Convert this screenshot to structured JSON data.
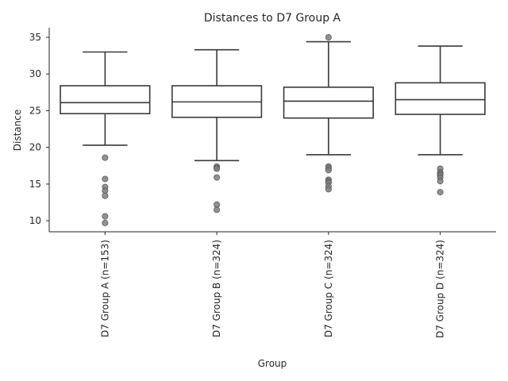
{
  "chart_data": {
    "type": "box",
    "title": "Distances to D7 Group A",
    "xlabel": "Group",
    "ylabel": "Distance",
    "ylim": [
      8.5,
      36.3
    ],
    "yticks": [
      10,
      15,
      20,
      25,
      30,
      35
    ],
    "grid": false,
    "categories": [
      "D7 Group A (n=153)",
      "D7 Group B (n=324)",
      "D7 Group C (n=324)",
      "D7 Group D (n=324)"
    ],
    "boxes": [
      {
        "whisker_low": 20.3,
        "q1": 24.6,
        "median": 26.1,
        "q3": 28.4,
        "whisker_high": 33.0,
        "outliers": [
          18.6,
          15.7,
          14.6,
          14.1,
          13.4,
          10.6,
          9.7
        ]
      },
      {
        "whisker_low": 18.2,
        "q1": 24.1,
        "median": 26.2,
        "q3": 28.4,
        "whisker_high": 33.3,
        "outliers": [
          17.4,
          17.2,
          17.1,
          15.9,
          12.2,
          11.5
        ]
      },
      {
        "whisker_low": 19.0,
        "q1": 24.0,
        "median": 26.3,
        "q3": 28.2,
        "whisker_high": 34.4,
        "outliers": [
          35.0,
          17.4,
          17.2,
          16.9,
          15.6,
          15.4,
          15.2,
          14.7,
          14.3
        ]
      },
      {
        "whisker_low": 19.0,
        "q1": 24.5,
        "median": 26.5,
        "q3": 28.8,
        "whisker_high": 33.8,
        "outliers": [
          17.1,
          16.6,
          16.4,
          16.2,
          15.9,
          15.4,
          13.9
        ]
      }
    ]
  }
}
